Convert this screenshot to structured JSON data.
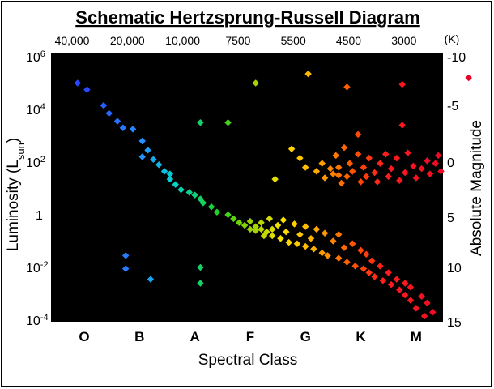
{
  "chart_data": {
    "type": "scatter",
    "title": "Schematic Hertzsprung-Russell Diagram",
    "xlabel": "Spectral Class",
    "ylabel": "Luminosity (L",
    "ylabel_sub": "sun",
    "ylabel_close": ")",
    "y2label": "Absolute Magnitude",
    "spectral_classes": [
      "O",
      "B",
      "A",
      "F",
      "G",
      "K",
      "M"
    ],
    "temperature_ticks": [
      "40,000",
      "20,000",
      "10,000",
      "7500",
      "5500",
      "4500",
      "3000"
    ],
    "temperature_unit": "(K)",
    "y_ticks": [
      {
        "base": "10",
        "exp": "6",
        "value": 1000000
      },
      {
        "base": "10",
        "exp": "4",
        "value": 10000
      },
      {
        "base": "10",
        "exp": "2",
        "value": 100
      },
      {
        "base": "1",
        "exp": "",
        "value": 1
      },
      {
        "base": "10",
        "exp": "-2",
        "value": 0.01
      },
      {
        "base": "10",
        "exp": "-4",
        "value": 0.0001
      }
    ],
    "magnitude_ticks": [
      "-10",
      "-5",
      "0",
      "5",
      "10",
      "15"
    ],
    "ylim_log10": [
      -4,
      6
    ],
    "x_scale": "spectral index, O=0 ... M=6",
    "y_scale": "log",
    "background": "#000000",
    "points": [
      [
        -0.12,
        5.0
      ],
      [
        0.05,
        4.75
      ],
      [
        0.35,
        4.15
      ],
      [
        0.45,
        3.85
      ],
      [
        0.6,
        3.55
      ],
      [
        0.7,
        3.3
      ],
      [
        0.88,
        3.25
      ],
      [
        1.05,
        2.8
      ],
      [
        1.15,
        2.45
      ],
      [
        1.05,
        2.2
      ],
      [
        1.25,
        2.1
      ],
      [
        1.35,
        1.9
      ],
      [
        1.45,
        1.65
      ],
      [
        1.55,
        1.55
      ],
      [
        1.55,
        1.35
      ],
      [
        1.65,
        1.15
      ],
      [
        1.75,
        0.95
      ],
      [
        1.9,
        0.85
      ],
      [
        2.0,
        0.75
      ],
      [
        2.1,
        0.6
      ],
      [
        2.15,
        0.45
      ],
      [
        2.3,
        0.3
      ],
      [
        2.4,
        0.1
      ],
      [
        2.6,
        0.0
      ],
      [
        2.7,
        -0.15
      ],
      [
        2.8,
        -0.3
      ],
      [
        2.9,
        -0.4
      ],
      [
        3.0,
        -0.55
      ],
      [
        3.1,
        -0.45
      ],
      [
        3.2,
        -0.55
      ],
      [
        3.3,
        -0.65
      ],
      [
        3.4,
        -0.8
      ],
      [
        3.55,
        -0.9
      ],
      [
        3.7,
        -1.05
      ],
      [
        3.85,
        -1.1
      ],
      [
        4.0,
        -1.2
      ],
      [
        4.15,
        -1.3
      ],
      [
        4.3,
        -1.45
      ],
      [
        4.4,
        -1.55
      ],
      [
        4.6,
        -1.65
      ],
      [
        4.75,
        -1.8
      ],
      [
        4.9,
        -1.95
      ],
      [
        5.05,
        -2.05
      ],
      [
        5.15,
        -2.2
      ],
      [
        5.25,
        -2.35
      ],
      [
        5.4,
        -2.5
      ],
      [
        5.55,
        -2.65
      ],
      [
        5.7,
        -2.85
      ],
      [
        5.8,
        -3.05
      ],
      [
        5.9,
        -3.25
      ],
      [
        6.0,
        -3.55
      ],
      [
        6.15,
        -3.85
      ],
      [
        3.0,
        -0.25
      ],
      [
        3.1,
        -0.6
      ],
      [
        3.2,
        -0.3
      ],
      [
        3.25,
        -0.8
      ],
      [
        3.35,
        -0.15
      ],
      [
        3.4,
        -0.55
      ],
      [
        3.5,
        -0.4
      ],
      [
        3.6,
        -0.2
      ],
      [
        3.65,
        -0.65
      ],
      [
        3.8,
        -0.35
      ],
      [
        3.9,
        -0.75
      ],
      [
        4.0,
        -0.45
      ],
      [
        4.1,
        -0.9
      ],
      [
        4.2,
        -0.55
      ],
      [
        4.35,
        -0.7
      ],
      [
        4.5,
        -1.0
      ],
      [
        4.6,
        -0.75
      ],
      [
        4.7,
        -1.25
      ],
      [
        4.85,
        -1.1
      ],
      [
        5.0,
        -1.35
      ],
      [
        5.1,
        -1.5
      ],
      [
        5.2,
        -1.75
      ],
      [
        5.35,
        -1.95
      ],
      [
        5.5,
        -2.2
      ],
      [
        5.65,
        -2.45
      ],
      [
        5.8,
        -2.6
      ],
      [
        5.9,
        -2.75
      ],
      [
        6.1,
        -3.1
      ],
      [
        6.2,
        -3.35
      ],
      [
        6.3,
        -3.7
      ],
      [
        3.75,
        2.5
      ],
      [
        3.9,
        2.15
      ],
      [
        4.0,
        1.8
      ],
      [
        4.2,
        1.65
      ],
      [
        4.3,
        1.95
      ],
      [
        4.35,
        1.4
      ],
      [
        4.45,
        1.75
      ],
      [
        4.5,
        1.55
      ],
      [
        4.55,
        2.25
      ],
      [
        4.6,
        1.8
      ],
      [
        4.65,
        1.2
      ],
      [
        4.75,
        1.45
      ],
      [
        4.8,
        1.95
      ],
      [
        4.85,
        1.65
      ],
      [
        4.95,
        2.3
      ],
      [
        5.0,
        1.25
      ],
      [
        5.05,
        1.8
      ],
      [
        5.1,
        1.45
      ],
      [
        5.15,
        2.15
      ],
      [
        5.25,
        1.6
      ],
      [
        5.3,
        1.25
      ],
      [
        5.35,
        1.95
      ],
      [
        5.45,
        2.3
      ],
      [
        5.5,
        1.45
      ],
      [
        5.55,
        1.75
      ],
      [
        5.65,
        2.15
      ],
      [
        5.7,
        1.3
      ],
      [
        5.8,
        1.6
      ],
      [
        5.85,
        2.35
      ],
      [
        5.95,
        1.85
      ],
      [
        6.0,
        1.4
      ],
      [
        6.1,
        1.75
      ],
      [
        6.2,
        2.05
      ],
      [
        6.25,
        1.55
      ],
      [
        6.35,
        1.95
      ],
      [
        6.4,
        2.25
      ],
      [
        6.45,
        1.65
      ],
      [
        3.45,
        1.35
      ],
      [
        4.7,
        2.55
      ],
      [
        3.1,
        5.0
      ],
      [
        4.05,
        5.35
      ],
      [
        4.75,
        4.85
      ],
      [
        5.75,
        4.95
      ],
      [
        6.95,
        5.2
      ],
      [
        2.6,
        3.5
      ],
      [
        2.1,
        3.5
      ],
      [
        5.75,
        3.4
      ],
      [
        4.95,
        3.05
      ],
      [
        4.6,
        1.5
      ],
      [
        0.75,
        -1.55
      ],
      [
        0.75,
        -2.05
      ],
      [
        1.2,
        -2.45
      ],
      [
        2.1,
        -2.0
      ],
      [
        2.1,
        -2.6
      ]
    ]
  }
}
